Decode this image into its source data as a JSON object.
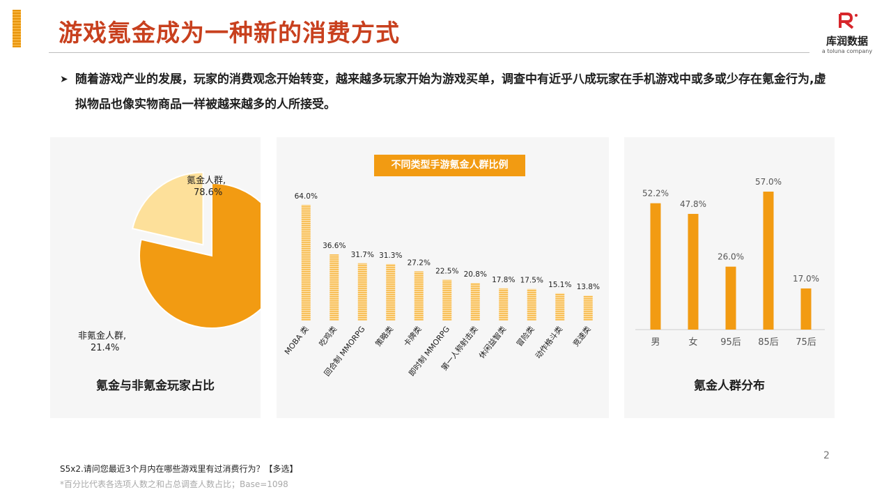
{
  "header": {
    "title": "游戏氪金成为一种新的消费方式",
    "logo_text": "库润数据",
    "logo_sub": "a toluna company"
  },
  "bullet": {
    "mark": "➤",
    "text": "随着游戏产业的发展，玩家的消费观念开始转变，越来越多玩家开始为游戏买单，调查中有近乎八成玩家在手机游戏中或多或少存在氪金行为,虚拟物品也像实物商品一样被越来越多的人所接受。"
  },
  "colors": {
    "accent": "#c8401e",
    "orange": "#f29b12",
    "light_orange": "#fde09a",
    "panel_bg": "#f6f6f6"
  },
  "chart_data": [
    {
      "type": "pie",
      "caption": "氪金与非氪金玩家占比",
      "slices": [
        {
          "label": "氪金人群,",
          "value": 78.6,
          "value_label": "78.6%",
          "color": "#f29b12"
        },
        {
          "label": "非氪金人群,",
          "value": 21.4,
          "value_label": "21.4%",
          "color": "#fde09a",
          "exploded": true
        }
      ]
    },
    {
      "type": "bar",
      "title": "不同类型手游氪金人群比例",
      "categories": [
        "MOBA 类",
        "吃鸡类",
        "回合制 MMORPG",
        "策略类",
        "卡牌类",
        "即时制 MMORPG",
        "第一人称射击类",
        "休闲益智类",
        "冒险类",
        "动作格斗类",
        "竞速类"
      ],
      "values": [
        64.0,
        36.6,
        31.7,
        31.3,
        27.2,
        22.5,
        20.8,
        17.8,
        17.5,
        15.1,
        13.8
      ],
      "value_labels": [
        "64.0%",
        "36.6%",
        "31.7%",
        "31.3%",
        "27.2%",
        "22.5%",
        "20.8%",
        "17.8%",
        "17.5%",
        "15.1%",
        "13.8%"
      ],
      "ylim": [
        0,
        70
      ],
      "bar_color": "#f7b94a"
    },
    {
      "type": "bar",
      "caption": "氪金人群分布",
      "categories": [
        "男",
        "女",
        "95后",
        "85后",
        "75后"
      ],
      "values": [
        52.2,
        47.8,
        26.0,
        57.0,
        17.0
      ],
      "value_labels": [
        "52.2%",
        "47.8%",
        "26.0%",
        "57.0%",
        "17.0%"
      ],
      "ylim": [
        0,
        65
      ],
      "bar_color": "#f29b12"
    }
  ],
  "footer": {
    "page_number": "2",
    "source": "S5x2.请问您最近3个月内在哪些游戏里有过消费行为？【多选】",
    "note": "*百分比代表各选项人数之和占总调查人数占比；Base=1098"
  }
}
